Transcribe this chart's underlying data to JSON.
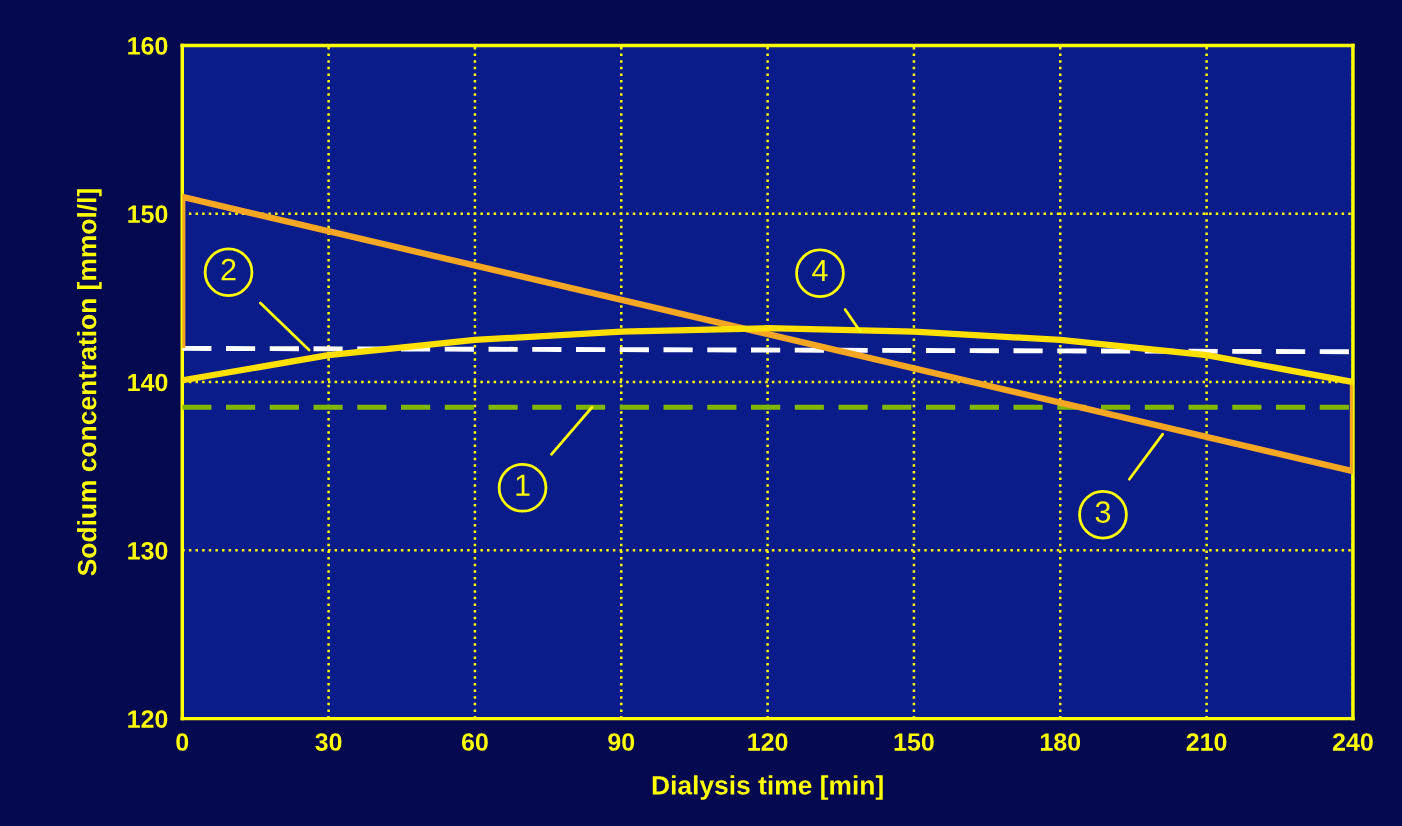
{
  "chart_data": {
    "type": "line",
    "xlabel": "Dialysis time [min]",
    "ylabel": "Sodium concentration [mmol/l]",
    "xlim": [
      0,
      240
    ],
    "xticks": [
      0,
      30,
      60,
      90,
      120,
      150,
      180,
      210,
      240
    ],
    "ylim": [
      120,
      160
    ],
    "yticks": [
      120,
      130,
      140,
      150,
      160
    ],
    "grid": true,
    "series": [
      {
        "color": "#7fb800",
        "line_style": "dashed",
        "x": [
          0,
          240
        ],
        "values": [
          138.5,
          138.5
        ]
      },
      {
        "color": "#ffffff",
        "line_style": "dashed",
        "x": [
          0,
          240
        ],
        "values": [
          142.0,
          141.8
        ]
      },
      {
        "color": "#f5a623",
        "line_style": "solid",
        "x": [
          0,
          0,
          240,
          240
        ],
        "values": [
          142.2,
          151.0,
          134.7,
          140.0
        ]
      },
      {
        "color": "#ffe000",
        "line_style": "solid",
        "x": [
          0,
          30,
          60,
          90,
          120,
          150,
          180,
          210,
          240
        ],
        "values": [
          140.1,
          141.6,
          142.5,
          143.0,
          143.2,
          143.0,
          142.5,
          141.6,
          140.0
        ]
      }
    ],
    "annotations": [
      {
        "text": "1",
        "x": 84,
        "y": 138.5
      },
      {
        "text": "2",
        "x": 26,
        "y": 141.9
      },
      {
        "text": "3",
        "x": 201,
        "y": 136.9
      },
      {
        "text": "4",
        "x": 139,
        "y": 143.0
      }
    ]
  }
}
